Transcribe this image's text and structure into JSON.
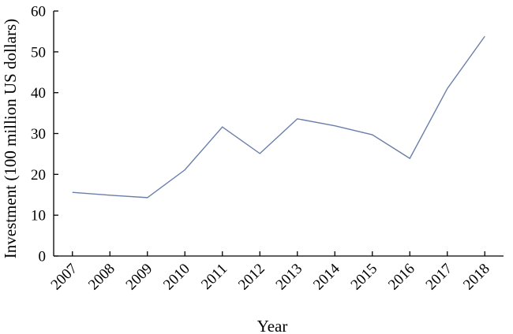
{
  "chart_data": {
    "type": "line",
    "title": "",
    "xlabel": "Year",
    "ylabel": "Investment (100 million US dollars)",
    "categories": [
      "2007",
      "2008",
      "2009",
      "2010",
      "2011",
      "2012",
      "2013",
      "2014",
      "2015",
      "2016",
      "2017",
      "2018"
    ],
    "series": [
      {
        "values": [
          15.6,
          14.9,
          14.3,
          21.1,
          31.6,
          25.1,
          33.6,
          31.9,
          29.7,
          23.9,
          41.0,
          53.8
        ],
        "color": "#6a7fa8"
      }
    ],
    "yticks": [
      "0",
      "10",
      "20",
      "30",
      "40",
      "50",
      "60"
    ],
    "ylim": [
      0,
      60
    ],
    "grid": false,
    "legend": "none"
  }
}
